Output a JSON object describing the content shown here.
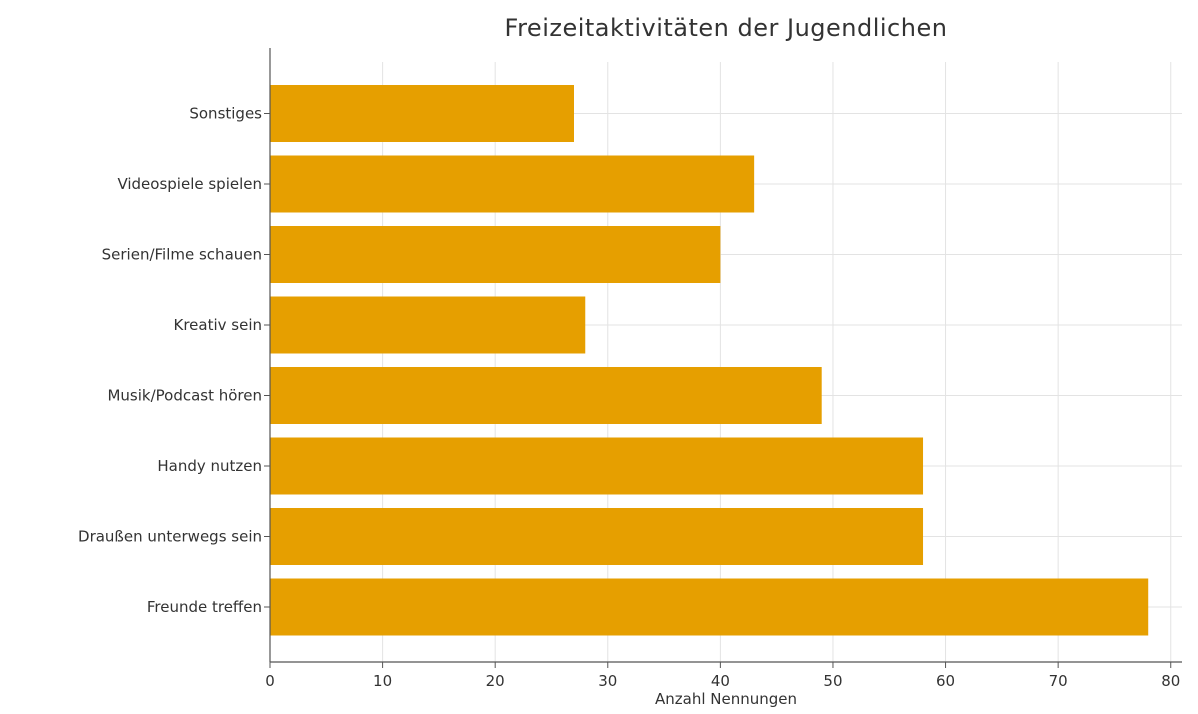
{
  "chart_data": {
    "type": "bar",
    "orientation": "horizontal",
    "title": "Freizeitaktivitäten der Jugendlichen",
    "xlabel": "Anzahl Nennungen",
    "ylabel": "",
    "categories": [
      "Freunde treffen",
      "Draußen unterwegs sein",
      "Handy nutzen",
      "Musik/Podcast hören",
      "Kreativ sein",
      "Serien/Filme schauen",
      "Videospiele spielen",
      "Sonstiges"
    ],
    "values": [
      78,
      58,
      58,
      49,
      28,
      40,
      43,
      27
    ],
    "xlim": [
      0,
      81
    ],
    "xticks": [
      0,
      10,
      20,
      30,
      40,
      50,
      60,
      70,
      80
    ],
    "grid": true,
    "bar_color": "#E69F00",
    "legend": "none"
  }
}
